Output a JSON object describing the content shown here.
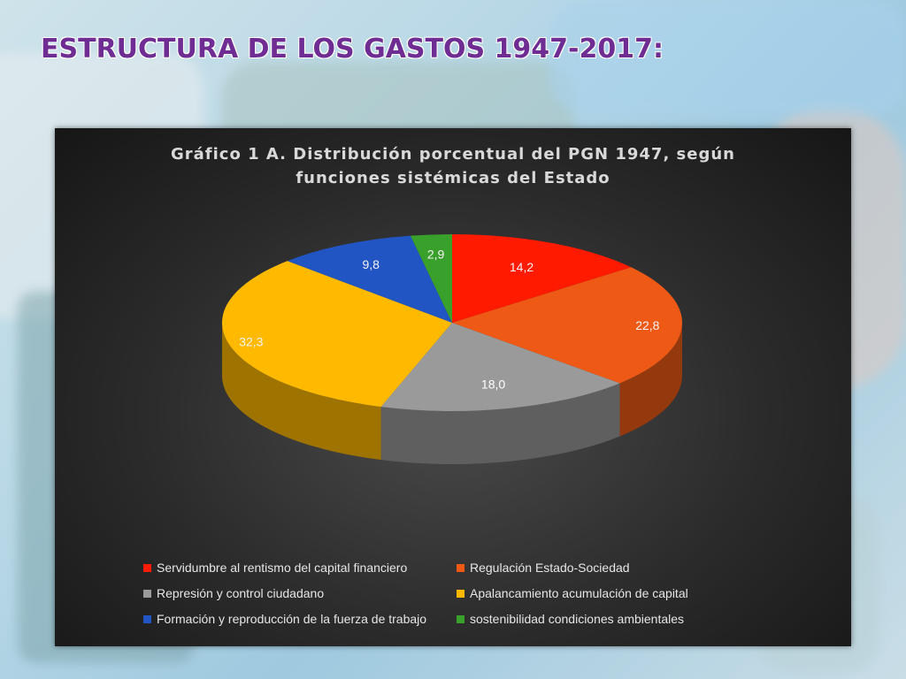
{
  "slide": {
    "title": "ESTRUCTURA DE LOS GASTOS 1947-2017:"
  },
  "chart_data": {
    "type": "pie",
    "title": "Gráfico 1 A. Distribución porcentual del PGN 1947, según funciones sistémicas del Estado",
    "title_lines": [
      "Gráfico 1 A. Distribución porcentual del PGN 1947, según",
      "funciones sistémicas del Estado"
    ],
    "legend_placement": "bottom",
    "slices": [
      {
        "label": "Servidumbre al rentismo del capital financiero",
        "value": 14.2,
        "value_label": "14,2",
        "color": "#ff1a00"
      },
      {
        "label": "Regulación Estado-Sociedad",
        "value": 22.8,
        "value_label": "22,8",
        "color": "#ee5a16"
      },
      {
        "label": "Represión y control ciudadano",
        "value": 18.0,
        "value_label": "18,0",
        "color": "#9a9a9a"
      },
      {
        "label": "Apalancamiento acumulación de capital",
        "value": 32.3,
        "value_label": "32,3",
        "color": "#ffba00"
      },
      {
        "label": "Formación y reproducción de la fuerza de trabajo",
        "value": 9.8,
        "value_label": "9,8",
        "color": "#2255c4"
      },
      {
        "label": "sostenibilidad condiciones ambientales",
        "value": 2.9,
        "value_label": "2,9",
        "color": "#39a02b"
      }
    ]
  }
}
